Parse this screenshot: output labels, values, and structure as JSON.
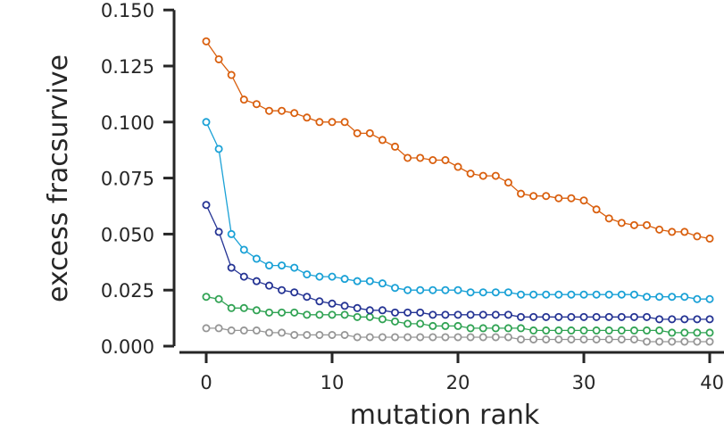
{
  "chart_data": {
    "type": "line",
    "title": "",
    "xlabel": "mutation rank",
    "ylabel": "excess fracsurvive",
    "xlim": [
      -2,
      40
    ],
    "ylim": [
      0,
      0.15
    ],
    "x_ticks": [
      0,
      10,
      20,
      30,
      40
    ],
    "x_tick_labels": [
      "0",
      "10",
      "20",
      "30",
      "40"
    ],
    "y_ticks": [
      0,
      0.025,
      0.05,
      0.075,
      0.1,
      0.125,
      0.15
    ],
    "y_tick_labels": [
      "0.000",
      "0.025",
      "0.050",
      "0.075",
      "0.100",
      "0.125",
      "0.150"
    ],
    "grid": false,
    "legend": "none",
    "marker": "open-circle",
    "x": [
      0,
      1,
      2,
      3,
      4,
      5,
      6,
      7,
      8,
      9,
      10,
      11,
      12,
      13,
      14,
      15,
      16,
      17,
      18,
      19,
      20,
      21,
      22,
      23,
      24,
      25,
      26,
      27,
      28,
      29,
      30,
      31,
      32,
      33,
      34,
      35,
      36,
      37,
      38,
      39,
      40
    ],
    "series": [
      {
        "color": "#d95f0e",
        "values": [
          0.136,
          0.128,
          0.121,
          0.11,
          0.108,
          0.105,
          0.105,
          0.104,
          0.102,
          0.1,
          0.1,
          0.1,
          0.095,
          0.095,
          0.092,
          0.089,
          0.084,
          0.084,
          0.083,
          0.083,
          0.08,
          0.077,
          0.076,
          0.076,
          0.073,
          0.068,
          0.067,
          0.067,
          0.066,
          0.066,
          0.065,
          0.061,
          0.057,
          0.055,
          0.054,
          0.054,
          0.052,
          0.051,
          0.051,
          0.049,
          0.048
        ]
      },
      {
        "color": "#1aa1d6",
        "values": [
          0.1,
          0.088,
          0.05,
          0.043,
          0.039,
          0.036,
          0.036,
          0.035,
          0.032,
          0.031,
          0.031,
          0.03,
          0.029,
          0.029,
          0.028,
          0.026,
          0.025,
          0.025,
          0.025,
          0.025,
          0.025,
          0.024,
          0.024,
          0.024,
          0.024,
          0.023,
          0.023,
          0.023,
          0.023,
          0.023,
          0.023,
          0.023,
          0.023,
          0.023,
          0.023,
          0.022,
          0.022,
          0.022,
          0.022,
          0.021,
          0.021
        ]
      },
      {
        "color": "#253494",
        "values": [
          0.063,
          0.051,
          0.035,
          0.031,
          0.029,
          0.027,
          0.025,
          0.024,
          0.022,
          0.02,
          0.019,
          0.018,
          0.017,
          0.016,
          0.016,
          0.015,
          0.015,
          0.015,
          0.014,
          0.014,
          0.014,
          0.014,
          0.014,
          0.014,
          0.014,
          0.013,
          0.013,
          0.013,
          0.013,
          0.013,
          0.013,
          0.013,
          0.013,
          0.013,
          0.013,
          0.013,
          0.012,
          0.012,
          0.012,
          0.012,
          0.012
        ]
      },
      {
        "color": "#31a354",
        "values": [
          0.022,
          0.021,
          0.017,
          0.017,
          0.016,
          0.015,
          0.015,
          0.015,
          0.014,
          0.014,
          0.014,
          0.014,
          0.013,
          0.013,
          0.012,
          0.011,
          0.01,
          0.01,
          0.009,
          0.009,
          0.009,
          0.008,
          0.008,
          0.008,
          0.008,
          0.008,
          0.007,
          0.007,
          0.007,
          0.007,
          0.007,
          0.007,
          0.007,
          0.007,
          0.007,
          0.007,
          0.007,
          0.006,
          0.006,
          0.006,
          0.006
        ]
      },
      {
        "color": "#969696",
        "values": [
          0.008,
          0.008,
          0.007,
          0.007,
          0.007,
          0.006,
          0.006,
          0.005,
          0.005,
          0.005,
          0.005,
          0.005,
          0.004,
          0.004,
          0.004,
          0.004,
          0.004,
          0.004,
          0.004,
          0.004,
          0.004,
          0.004,
          0.004,
          0.004,
          0.004,
          0.003,
          0.003,
          0.003,
          0.003,
          0.003,
          0.003,
          0.003,
          0.003,
          0.003,
          0.003,
          0.002,
          0.002,
          0.002,
          0.002,
          0.002,
          0.002
        ]
      }
    ]
  }
}
